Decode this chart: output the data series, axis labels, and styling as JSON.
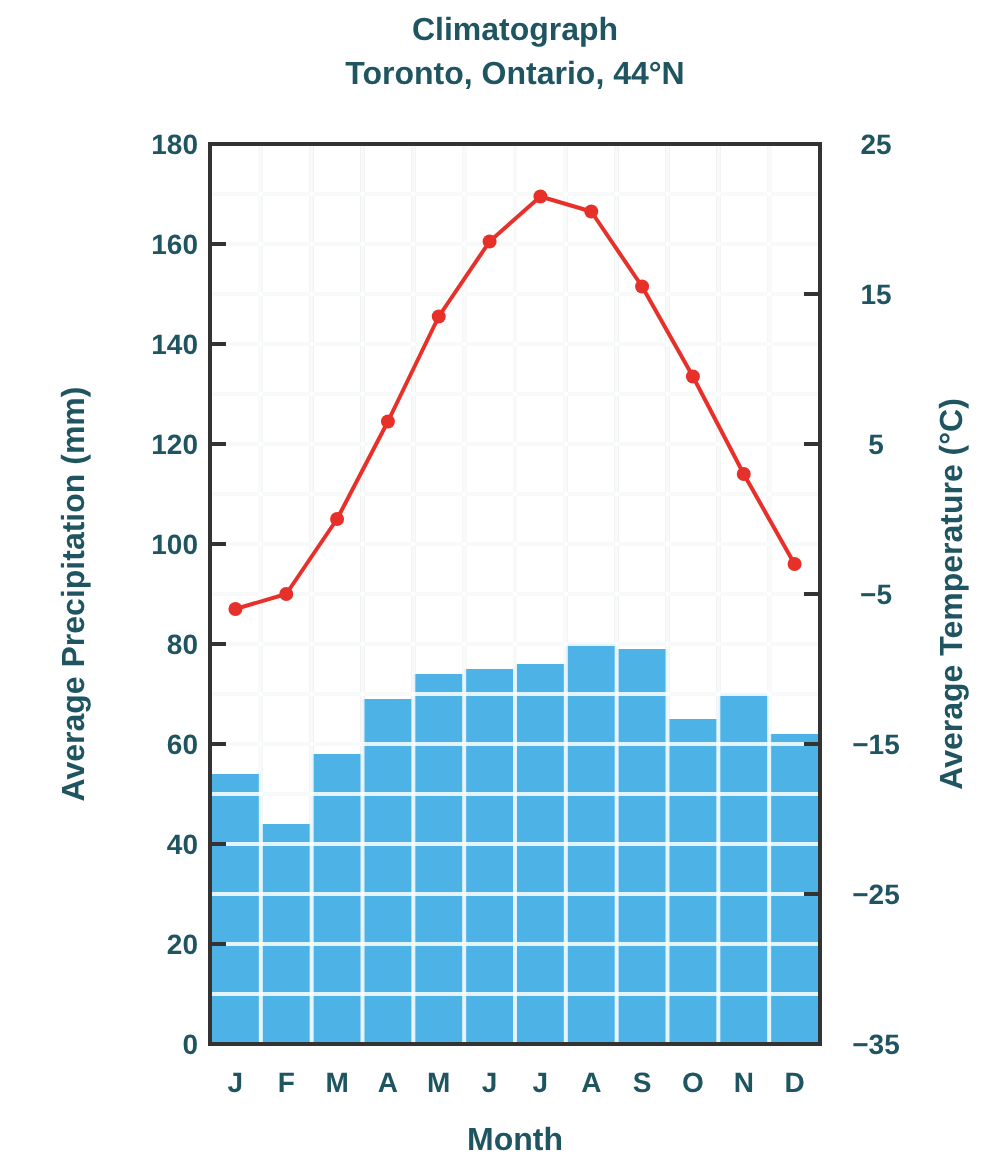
{
  "chart_data": {
    "type": "bar",
    "title": "Climatograph",
    "subtitle": "Toronto, Ontario, 44°N",
    "xlabel": "Month",
    "ylabel": "Average Precipitation (mm)",
    "y2label": "Average Temperature (°C)",
    "categories": [
      "J",
      "F",
      "M",
      "A",
      "M",
      "J",
      "J",
      "A",
      "S",
      "O",
      "N",
      "D"
    ],
    "series": [
      {
        "color": "#4db3e6",
        "values": [
          54,
          44,
          58,
          69,
          74,
          75,
          76,
          80,
          79,
          65,
          70,
          62
        ]
      },
      {
        "type": "line",
        "axis": "y2",
        "color": "#e8302a",
        "marker": "circle",
        "values": [
          -6,
          -5,
          0,
          6.5,
          13.5,
          18.5,
          21.5,
          20.5,
          15.5,
          9.5,
          3,
          -3
        ]
      }
    ],
    "ylim": [
      0,
      180
    ],
    "yticks": [
      0,
      20,
      40,
      60,
      80,
      100,
      120,
      140,
      160,
      180
    ],
    "y2lim": [
      -35,
      25
    ],
    "y2ticks": [
      -35,
      -25,
      -15,
      -5,
      5,
      15,
      25
    ],
    "grid": true
  }
}
